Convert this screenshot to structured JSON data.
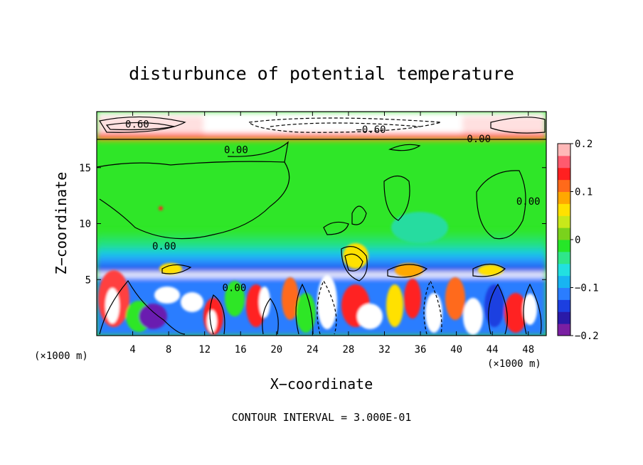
{
  "chart_data": {
    "type": "heatmap",
    "title": "disturbunce of potential temperature",
    "xlabel": "X−coordinate",
    "ylabel": "Z−coordinate",
    "x_unit": "(×1000 m)",
    "z_unit": "(×1000 m)",
    "footnote": "CONTOUR INTERVAL = 3.000E-01",
    "xlim": [
      0,
      50
    ],
    "ylim": [
      0,
      20
    ],
    "x_ticks": [
      "4",
      "8",
      "12",
      "16",
      "20",
      "24",
      "28",
      "32",
      "36",
      "40",
      "44",
      "48"
    ],
    "y_ticks": [
      "5",
      "10",
      "15"
    ],
    "colorbar": {
      "range": [
        -0.2,
        0.2
      ],
      "tick_labels": [
        "0.2",
        "0.1",
        "0",
        "−0.1",
        "−0.2"
      ],
      "tick_values": [
        0.2,
        0.1,
        0,
        -0.1,
        -0.2
      ],
      "colors": [
        "#7a1fa2",
        "#2a1aa8",
        "#1c3fe0",
        "#2a7dff",
        "#18b4f2",
        "#22e0e0",
        "#2fe68a",
        "#26e628",
        "#7ad21c",
        "#c8e81a",
        "#ffe100",
        "#ffa800",
        "#ff6a1a",
        "#ff2020",
        "#ff5a6e",
        "#ffb8b8"
      ]
    },
    "contour_labels": [
      {
        "text": "0.60",
        "x": 4.5,
        "z": 18.9
      },
      {
        "text": "−0.60",
        "x": 30.5,
        "z": 18.4
      },
      {
        "text": "0.00",
        "x": 42.5,
        "z": 17.6
      },
      {
        "text": "0.00",
        "x": 15.5,
        "z": 16.6
      },
      {
        "text": "0.00",
        "x": 48.0,
        "z": 12.0
      },
      {
        "text": "0.00",
        "x": 7.5,
        "z": 8.0
      },
      {
        "text": "0.00",
        "x": 15.3,
        "z": 4.3
      }
    ],
    "bands": {
      "upper_anomaly_top": 20,
      "tropopause": 17.5,
      "mid_layer_top": 9.0,
      "mid_layer_bottom": 6.0,
      "lower_layer_top": 5.5
    }
  }
}
